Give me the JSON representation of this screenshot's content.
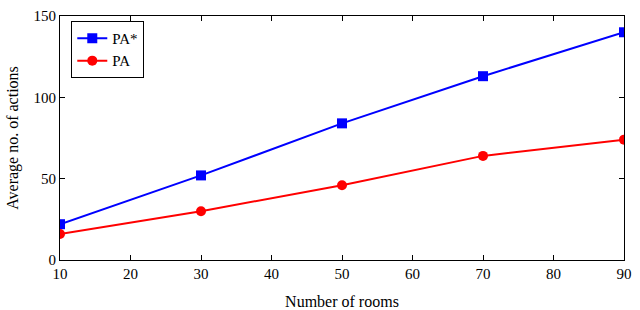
{
  "chart_data": {
    "type": "line",
    "x_label": "Number of rooms",
    "y_label": "Average no. of actions",
    "x": [
      10,
      30,
      50,
      70,
      90
    ],
    "series": [
      {
        "name": "PA*",
        "color": "#0000ff",
        "marker": "square",
        "values": [
          22,
          52,
          84,
          113,
          140
        ]
      },
      {
        "name": "PA",
        "color": "#ff0000",
        "marker": "circle",
        "values": [
          16,
          30,
          46,
          64,
          74
        ]
      }
    ],
    "xlim": [
      10,
      90
    ],
    "xticks": [
      10,
      20,
      30,
      40,
      50,
      60,
      70,
      80,
      90
    ],
    "ylim": [
      0,
      150
    ],
    "yticks": [
      0,
      50,
      100,
      150
    ],
    "grid": false,
    "legend": "upper left"
  }
}
